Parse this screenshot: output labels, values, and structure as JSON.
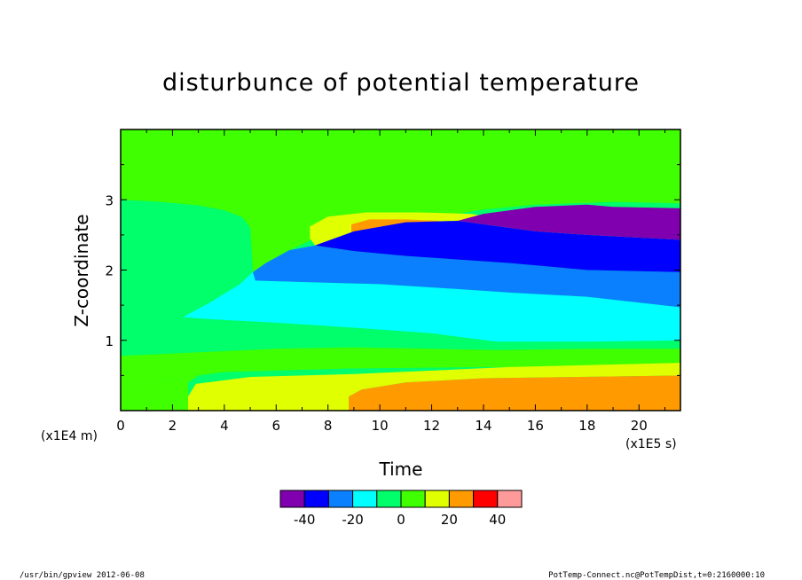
{
  "chart_data": {
    "type": "contour",
    "title": "disturbunce of potential temperature",
    "xlabel": "Time",
    "ylabel": "Z-coordinate",
    "x_unit": "(x1E5 s)",
    "y_unit": "(x1E4 m)",
    "xlim": [
      0,
      21.6
    ],
    "ylim": [
      0,
      4.0
    ],
    "xticks": [
      0,
      2,
      4,
      6,
      8,
      10,
      12,
      14,
      16,
      18,
      20
    ],
    "yticks": [
      1,
      2,
      3
    ],
    "levels": [
      -50,
      -40,
      -30,
      -20,
      -10,
      0,
      10,
      20,
      30,
      40,
      50
    ],
    "level_labels": [
      "-40",
      "-20",
      "0",
      "20",
      "40"
    ],
    "level_label_values": [
      -40,
      -20,
      0,
      20,
      40
    ],
    "colors": [
      "#8000b0",
      "#0000ff",
      "#0a80ff",
      "#00ffff",
      "#00ff6a",
      "#40ff00",
      "#e0ff00",
      "#ff9a00",
      "#ff0000",
      "#ff9a9a"
    ],
    "regions": [
      {
        "level": 5,
        "poly": [
          [
            0,
            3.0
          ],
          [
            0,
            4.0
          ],
          [
            21.6,
            4.0
          ],
          [
            21.6,
            2.95
          ],
          [
            19,
            2.97
          ],
          [
            16,
            2.93
          ],
          [
            14,
            2.86
          ],
          [
            13,
            2.8
          ],
          [
            11,
            2.72
          ],
          [
            9,
            2.6
          ],
          [
            7.5,
            2.45
          ],
          [
            6.5,
            2.28
          ],
          [
            5.6,
            2.1
          ],
          [
            5.1,
            1.97
          ],
          [
            5.0,
            2.6
          ],
          [
            4.7,
            2.75
          ],
          [
            4.0,
            2.85
          ],
          [
            3.0,
            2.92
          ],
          [
            1.5,
            2.97
          ]
        ]
      },
      {
        "level": 4,
        "poly": [
          [
            0,
            3.0
          ],
          [
            1.5,
            2.97
          ],
          [
            3.0,
            2.92
          ],
          [
            4.0,
            2.85
          ],
          [
            4.7,
            2.75
          ],
          [
            5.0,
            2.6
          ],
          [
            5.1,
            1.97
          ],
          [
            4.6,
            1.8
          ],
          [
            3.5,
            1.55
          ],
          [
            2.4,
            1.33
          ],
          [
            3.5,
            1.3
          ],
          [
            6,
            1.25
          ],
          [
            9,
            1.18
          ],
          [
            12,
            1.1
          ],
          [
            14.5,
            0.98
          ],
          [
            18,
            0.98
          ],
          [
            21.6,
            1.0
          ],
          [
            21.6,
            0.6
          ],
          [
            14,
            0.62
          ],
          [
            8.8,
            0.6
          ],
          [
            4,
            0.55
          ],
          [
            0,
            0.35
          ]
        ]
      },
      {
        "level": 5,
        "poly": [
          [
            0,
            0.35
          ],
          [
            4,
            0.55
          ],
          [
            8.8,
            0.6
          ],
          [
            14,
            0.62
          ],
          [
            21.6,
            0.6
          ],
          [
            21.6,
            0.88
          ],
          [
            18,
            0.88
          ],
          [
            14.5,
            0.86
          ],
          [
            12,
            0.88
          ],
          [
            9,
            0.9
          ],
          [
            6,
            0.88
          ],
          [
            0,
            0.78
          ]
        ]
      },
      {
        "level": 5,
        "poly": [
          [
            0,
            0
          ],
          [
            0,
            0.35
          ],
          [
            4,
            0.55
          ],
          [
            8.8,
            0.6
          ],
          [
            14,
            0.62
          ],
          [
            21.6,
            0.6
          ],
          [
            21.6,
            0.68
          ],
          [
            15,
            0.7
          ],
          [
            9,
            0.64
          ],
          [
            5,
            0.6
          ],
          [
            3,
            0.5
          ],
          [
            2.6,
            0.4
          ],
          [
            2.6,
            0
          ]
        ]
      },
      {
        "level": 6,
        "poly": [
          [
            2.6,
            0
          ],
          [
            2.6,
            0.2
          ],
          [
            2.9,
            0.38
          ],
          [
            5,
            0.48
          ],
          [
            9,
            0.52
          ],
          [
            15,
            0.62
          ],
          [
            21.6,
            0.68
          ],
          [
            21.6,
            0.5
          ],
          [
            14,
            0.46
          ],
          [
            11,
            0.4
          ],
          [
            9.3,
            0.3
          ],
          [
            8.8,
            0.2
          ],
          [
            8.8,
            0
          ]
        ]
      },
      {
        "level": 7,
        "poly": [
          [
            8.8,
            0
          ],
          [
            8.8,
            0.2
          ],
          [
            9.3,
            0.3
          ],
          [
            11,
            0.4
          ],
          [
            14,
            0.46
          ],
          [
            21.6,
            0.5
          ],
          [
            21.6,
            0
          ]
        ]
      },
      {
        "level": 6,
        "poly": [
          [
            7.6,
            2.3
          ],
          [
            7.3,
            2.45
          ],
          [
            7.3,
            2.62
          ],
          [
            8,
            2.76
          ],
          [
            9.5,
            2.82
          ],
          [
            11.5,
            2.82
          ],
          [
            13.5,
            2.8
          ],
          [
            14.2,
            2.76
          ],
          [
            13,
            2.7
          ],
          [
            11,
            2.62
          ],
          [
            9,
            2.5
          ]
        ]
      },
      {
        "level": 7,
        "poly": [
          [
            8.9,
            2.53
          ],
          [
            8.9,
            2.65
          ],
          [
            9.6,
            2.72
          ],
          [
            11,
            2.72
          ],
          [
            12.3,
            2.7
          ],
          [
            11,
            2.62
          ]
        ]
      },
      {
        "level": 3,
        "poly": [
          [
            2.4,
            1.33
          ],
          [
            3.5,
            1.55
          ],
          [
            4.6,
            1.8
          ],
          [
            5.1,
            1.97
          ],
          [
            5.2,
            1.85
          ],
          [
            7,
            1.83
          ],
          [
            10,
            1.8
          ],
          [
            13,
            1.73
          ],
          [
            15,
            1.68
          ],
          [
            18,
            1.62
          ],
          [
            21.6,
            1.47
          ],
          [
            21.6,
            1.0
          ],
          [
            18,
            0.98
          ],
          [
            14.5,
            0.98
          ],
          [
            12,
            1.1
          ],
          [
            9,
            1.18
          ],
          [
            6,
            1.25
          ],
          [
            3.5,
            1.3
          ]
        ]
      },
      {
        "level": 2,
        "poly": [
          [
            5.1,
            1.97
          ],
          [
            5.6,
            2.1
          ],
          [
            6.5,
            2.28
          ],
          [
            7.5,
            2.35
          ],
          [
            9,
            2.27
          ],
          [
            11,
            2.2
          ],
          [
            13,
            2.15
          ],
          [
            15,
            2.1
          ],
          [
            18,
            2.0
          ],
          [
            21.6,
            1.97
          ],
          [
            21.6,
            1.47
          ],
          [
            18,
            1.62
          ],
          [
            15,
            1.68
          ],
          [
            13,
            1.73
          ],
          [
            10,
            1.8
          ],
          [
            7,
            1.83
          ],
          [
            5.2,
            1.85
          ]
        ]
      },
      {
        "level": 1,
        "poly": [
          [
            7.5,
            2.35
          ],
          [
            9,
            2.55
          ],
          [
            11,
            2.68
          ],
          [
            13,
            2.7
          ],
          [
            14,
            2.65
          ],
          [
            16,
            2.55
          ],
          [
            18,
            2.5
          ],
          [
            21.6,
            2.43
          ],
          [
            21.6,
            1.97
          ],
          [
            18,
            2.0
          ],
          [
            15,
            2.1
          ],
          [
            13,
            2.15
          ],
          [
            11,
            2.2
          ],
          [
            9,
            2.27
          ]
        ]
      },
      {
        "level": 0,
        "poly": [
          [
            13,
            2.7
          ],
          [
            14,
            2.8
          ],
          [
            16,
            2.9
          ],
          [
            18,
            2.93
          ],
          [
            19,
            2.9
          ],
          [
            21.6,
            2.88
          ],
          [
            21.6,
            2.43
          ],
          [
            18,
            2.5
          ],
          [
            16,
            2.55
          ],
          [
            14,
            2.65
          ]
        ]
      }
    ]
  },
  "footer": {
    "left": "/usr/bin/gpview  2012-06-08",
    "right": "PotTemp-Connect.nc@PotTempDist,t=0:2160000:10"
  }
}
